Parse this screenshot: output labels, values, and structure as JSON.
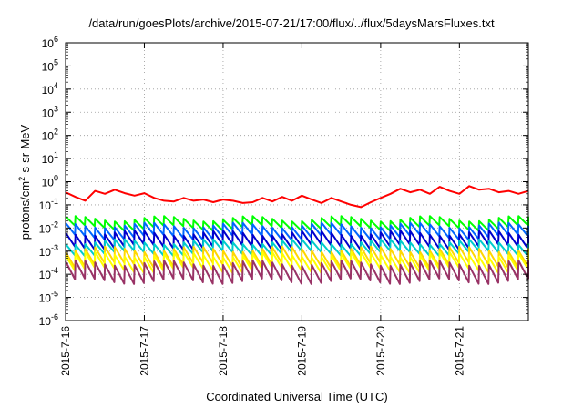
{
  "chart_data": {
    "type": "line",
    "title": "/data/run/goesPlots/archive/2015-07-21/17:00/flux/../flux/5daysMarsFluxes.txt",
    "xlabel": "Coordinated Universal Time (UTC)",
    "ylabel": {
      "before": "protons/cm",
      "sup": "2",
      "after": "-s-sr-MeV"
    },
    "y_scale": "log",
    "ylim_exponents": [
      -6,
      6
    ],
    "y_tick_labels": [
      {
        "base": "10",
        "exp": "6"
      },
      {
        "base": "10",
        "exp": "5"
      },
      {
        "base": "10",
        "exp": "4"
      },
      {
        "base": "10",
        "exp": "3"
      },
      {
        "base": "10",
        "exp": "2"
      },
      {
        "base": "10",
        "exp": "1"
      },
      {
        "base": "10",
        "exp": "0"
      },
      {
        "base": "10",
        "exp": "-1"
      },
      {
        "base": "10",
        "exp": "-2"
      },
      {
        "base": "10",
        "exp": "-3"
      },
      {
        "base": "10",
        "exp": "-4"
      },
      {
        "base": "10",
        "exp": "-5"
      },
      {
        "base": "10",
        "exp": "-6"
      }
    ],
    "xlim": [
      "2015-07-16",
      "2015-07-21 21:00"
    ],
    "x_ticks": [
      "2015-7-16",
      "2015-7-17",
      "2015-7-18",
      "2015-7-19",
      "2015-7-20",
      "2015-7-21"
    ],
    "grid": true,
    "series": [
      {
        "color": "#ff0000",
        "x": [
          "2015-07-16 00:00",
          "2015-07-16 03:00",
          "2015-07-16 06:00",
          "2015-07-16 09:00",
          "2015-07-16 12:00",
          "2015-07-16 15:00",
          "2015-07-16 18:00",
          "2015-07-16 21:00",
          "2015-07-17 00:00",
          "2015-07-17 03:00",
          "2015-07-17 06:00",
          "2015-07-17 09:00",
          "2015-07-17 12:00",
          "2015-07-17 15:00",
          "2015-07-17 18:00",
          "2015-07-17 21:00",
          "2015-07-18 00:00",
          "2015-07-18 03:00",
          "2015-07-18 06:00",
          "2015-07-18 09:00",
          "2015-07-18 12:00",
          "2015-07-18 15:00",
          "2015-07-18 18:00",
          "2015-07-18 21:00",
          "2015-07-19 00:00",
          "2015-07-19 03:00",
          "2015-07-19 06:00",
          "2015-07-19 09:00",
          "2015-07-19 12:00",
          "2015-07-19 15:00",
          "2015-07-19 18:00",
          "2015-07-19 21:00",
          "2015-07-20 00:00",
          "2015-07-20 03:00",
          "2015-07-20 06:00",
          "2015-07-20 09:00",
          "2015-07-20 12:00",
          "2015-07-20 15:00",
          "2015-07-20 18:00",
          "2015-07-20 21:00",
          "2015-07-21 00:00",
          "2015-07-21 03:00",
          "2015-07-21 06:00",
          "2015-07-21 09:00",
          "2015-07-21 12:00",
          "2015-07-21 15:00",
          "2015-07-21 18:00",
          "2015-07-21 21:00"
        ],
        "y": [
          0.35,
          0.22,
          0.15,
          0.4,
          0.3,
          0.45,
          0.32,
          0.25,
          0.32,
          0.2,
          0.15,
          0.14,
          0.2,
          0.15,
          0.17,
          0.13,
          0.17,
          0.15,
          0.12,
          0.13,
          0.2,
          0.14,
          0.22,
          0.15,
          0.25,
          0.17,
          0.12,
          0.2,
          0.14,
          0.1,
          0.08,
          0.13,
          0.2,
          0.3,
          0.5,
          0.35,
          0.45,
          0.3,
          0.6,
          0.4,
          0.3,
          0.65,
          0.45,
          0.5,
          0.35,
          0.4,
          0.3,
          0.4
        ]
      },
      {
        "color": "#00ff00",
        "pattern": "sawtooth",
        "peak": 0.025,
        "trough": 0.01
      },
      {
        "color": "#0066ff",
        "pattern": "sawtooth",
        "peak": 0.013,
        "trough": 0.004
      },
      {
        "color": "#0000cc",
        "pattern": "sawtooth",
        "peak": 0.006,
        "trough": 0.0015
      },
      {
        "color": "#00cccc",
        "pattern": "sawtooth",
        "peak": 0.0025,
        "trough": 0.0008
      },
      {
        "color": "#ffd700",
        "pattern": "sawtooth",
        "peak": 0.0012,
        "trough": 0.00025
      },
      {
        "color": "#ffff00",
        "pattern": "sawtooth",
        "peak": 0.0007,
        "trough": 0.00015
      },
      {
        "color": "#993366",
        "pattern": "sawtooth",
        "peak": 0.0003,
        "trough": 5e-05
      }
    ]
  }
}
